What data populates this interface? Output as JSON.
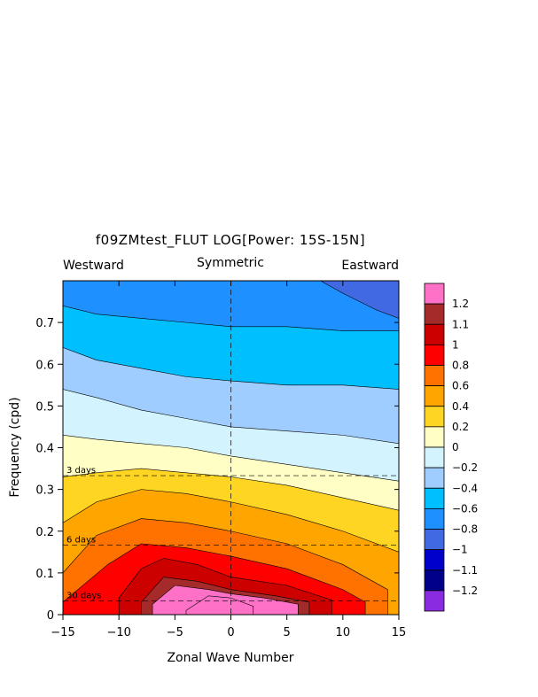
{
  "chart_data": {
    "type": "heatmap",
    "subtype": "filled-contour",
    "title": "f09ZMtest_FLUT LOG[Power: 15S-15N]",
    "header_left": "Westward",
    "header_center": "Symmetric",
    "header_right": "Eastward",
    "xlabel": "Zonal Wave Number",
    "ylabel": "Frequency (cpd)",
    "xlim": [
      -15,
      15
    ],
    "ylim": [
      0,
      0.8
    ],
    "xticks": [
      "−15",
      "−10",
      "−5",
      "0",
      "5",
      "10",
      "15"
    ],
    "xtick_values": [
      -15,
      -10,
      -5,
      0,
      5,
      10,
      15
    ],
    "yticks": [
      "0",
      "0.1",
      "0.2",
      "0.3",
      "0.4",
      "0.5",
      "0.6",
      "0.7"
    ],
    "ytick_values": [
      0,
      0.1,
      0.2,
      0.3,
      0.4,
      0.5,
      0.6,
      0.7
    ],
    "reference_lines": [
      {
        "label": "3 days",
        "frequency": 0.333
      },
      {
        "label": "6 days",
        "frequency": 0.1667
      },
      {
        "label": "30 days",
        "frequency": 0.0333
      }
    ],
    "contour_levels": [
      -1.2,
      -1.1,
      -1,
      -0.8,
      -0.6,
      -0.4,
      -0.2,
      0,
      0.2,
      0.4,
      0.6,
      0.8,
      1,
      1.1,
      1.2
    ],
    "colorbar": [
      {
        "label": "1.2",
        "color": "#ff71c6"
      },
      {
        "label": "1.1",
        "color": "#a52a2a"
      },
      {
        "label": "1",
        "color": "#cd0000"
      },
      {
        "label": "0.8",
        "color": "#ff0000"
      },
      {
        "label": "0.6",
        "color": "#ff7200"
      },
      {
        "label": "0.4",
        "color": "#ffa500"
      },
      {
        "label": "0.2",
        "color": "#ffd524"
      },
      {
        "label": "0",
        "color": "#ffffc5"
      },
      {
        "label": "−0.2",
        "color": "#d3f4ff"
      },
      {
        "label": "−0.4",
        "color": "#a0cdff"
      },
      {
        "label": "−0.6",
        "color": "#00bfff"
      },
      {
        "label": "−0.8",
        "color": "#1e90ff"
      },
      {
        "label": "−1",
        "color": "#4169e1"
      },
      {
        "label": "−1.1",
        "color": "#0000cd"
      },
      {
        "label": "−1.2",
        "color": "#00008b"
      },
      {
        "label": "",
        "color": "#8a2be2"
      }
    ],
    "contour_boundaries": [
      {
        "level": 1.2,
        "freq_at": [
          [
            -4,
            0.01
          ],
          [
            -2,
            0.045
          ],
          [
            0,
            0.04
          ],
          [
            2,
            0.02
          ]
        ]
      },
      {
        "level": 1.1,
        "freq_at": [
          [
            -7,
            0.025
          ],
          [
            -5,
            0.07
          ],
          [
            -2,
            0.06
          ],
          [
            0,
            0.05
          ],
          [
            3,
            0.04
          ],
          [
            6,
            0.025
          ]
        ]
      },
      {
        "level": 1.0,
        "freq_at": [
          [
            -8,
            0.03
          ],
          [
            -6,
            0.09
          ],
          [
            -3,
            0.08
          ],
          [
            0,
            0.06
          ],
          [
            4,
            0.045
          ],
          [
            7,
            0.03
          ]
        ]
      },
      {
        "level": 0.8,
        "freq_at": [
          [
            -10,
            0.04
          ],
          [
            -8,
            0.11
          ],
          [
            -6,
            0.135
          ],
          [
            -3,
            0.12
          ],
          [
            0,
            0.09
          ],
          [
            5,
            0.07
          ],
          [
            9,
            0.035
          ]
        ]
      },
      {
        "level": 0.6,
        "freq_at": [
          [
            -15,
            0.03
          ],
          [
            -11,
            0.12
          ],
          [
            -8,
            0.17
          ],
          [
            -4,
            0.16
          ],
          [
            0,
            0.14
          ],
          [
            5,
            0.11
          ],
          [
            10,
            0.06
          ],
          [
            12,
            0.03
          ]
        ]
      },
      {
        "level": 0.4,
        "freq_at": [
          [
            -15,
            0.1
          ],
          [
            -12,
            0.19
          ],
          [
            -8,
            0.23
          ],
          [
            -4,
            0.22
          ],
          [
            0,
            0.2
          ],
          [
            5,
            0.17
          ],
          [
            10,
            0.12
          ],
          [
            14,
            0.06
          ]
        ]
      },
      {
        "level": 0.2,
        "freq_at": [
          [
            -15,
            0.22
          ],
          [
            -12,
            0.27
          ],
          [
            -8,
            0.3
          ],
          [
            -4,
            0.29
          ],
          [
            0,
            0.27
          ],
          [
            5,
            0.24
          ],
          [
            10,
            0.2
          ],
          [
            15,
            0.15
          ]
        ]
      },
      {
        "level": 0.0,
        "freq_at": [
          [
            -15,
            0.33
          ],
          [
            -12,
            0.34
          ],
          [
            -8,
            0.35
          ],
          [
            -4,
            0.34
          ],
          [
            0,
            0.33
          ],
          [
            5,
            0.31
          ],
          [
            10,
            0.28
          ],
          [
            15,
            0.25
          ]
        ]
      },
      {
        "level": -0.2,
        "freq_at": [
          [
            -15,
            0.43
          ],
          [
            -12,
            0.42
          ],
          [
            -8,
            0.41
          ],
          [
            -4,
            0.4
          ],
          [
            0,
            0.38
          ],
          [
            5,
            0.36
          ],
          [
            10,
            0.34
          ],
          [
            15,
            0.32
          ]
        ]
      },
      {
        "level": -0.4,
        "freq_at": [
          [
            -15,
            0.54
          ],
          [
            -12,
            0.52
          ],
          [
            -8,
            0.49
          ],
          [
            -4,
            0.47
          ],
          [
            0,
            0.45
          ],
          [
            5,
            0.44
          ],
          [
            10,
            0.43
          ],
          [
            15,
            0.41
          ]
        ]
      },
      {
        "level": -0.6,
        "freq_at": [
          [
            -15,
            0.64
          ],
          [
            -12,
            0.61
          ],
          [
            -8,
            0.59
          ],
          [
            -4,
            0.57
          ],
          [
            0,
            0.56
          ],
          [
            5,
            0.55
          ],
          [
            10,
            0.55
          ],
          [
            15,
            0.54
          ]
        ]
      },
      {
        "level": -0.8,
        "freq_at": [
          [
            -15,
            0.74
          ],
          [
            -12,
            0.72
          ],
          [
            -8,
            0.71
          ],
          [
            -4,
            0.7
          ],
          [
            0,
            0.69
          ],
          [
            5,
            0.69
          ],
          [
            10,
            0.68
          ],
          [
            15,
            0.68
          ]
        ]
      },
      {
        "level": -1.0,
        "freq_at": [
          [
            8,
            0.8
          ],
          [
            10,
            0.77
          ],
          [
            13,
            0.73
          ],
          [
            15,
            0.71
          ]
        ]
      }
    ]
  }
}
